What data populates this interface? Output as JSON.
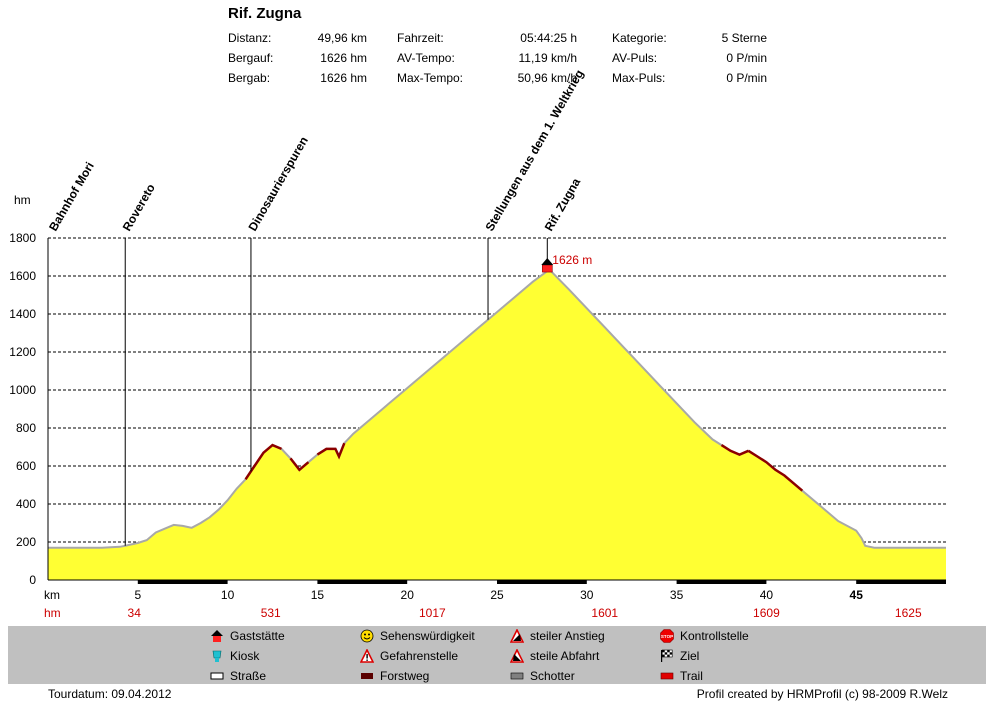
{
  "header": {
    "title": "Rif. Zugna",
    "stats": [
      [
        {
          "label": "Distanz:",
          "value": "49,96 km"
        },
        {
          "label": "Fahrzeit:",
          "value": "05:44:25 h"
        },
        {
          "label": "Kategorie:",
          "value": "5 Sterne"
        }
      ],
      [
        {
          "label": "Bergauf:",
          "value": "1626 hm"
        },
        {
          "label": "AV-Tempo:",
          "value": "11,19 km/h"
        },
        {
          "label": "AV-Puls:",
          "value": "0 P/min"
        }
      ],
      [
        {
          "label": "Bergab:",
          "value": "1626 hm"
        },
        {
          "label": "Max-Tempo:",
          "value": "50,96 km/h"
        },
        {
          "label": "Max-Puls:",
          "value": "0 P/min"
        }
      ]
    ]
  },
  "chart_data": {
    "type": "area",
    "ylabel": "hm",
    "xlabel": "km",
    "ylim": [
      0,
      1800
    ],
    "xlim": [
      0,
      50
    ],
    "yticks": [
      0,
      200,
      400,
      600,
      800,
      1000,
      1200,
      1400,
      1600,
      1800
    ],
    "xticks": [
      5,
      10,
      15,
      20,
      25,
      30,
      35,
      40,
      45
    ],
    "xtick_labels": [
      "5",
      "10",
      "15",
      "20",
      "25",
      "30",
      "35",
      "40",
      "45"
    ],
    "grid": "horizontal dashed",
    "fill_color": "#ffff33",
    "outline_color": "#a8a8a8",
    "trail_color": "#8b0000",
    "elevation": {
      "x": [
        0,
        1,
        2,
        3,
        4,
        4.3,
        5,
        5.5,
        6,
        6.5,
        7,
        7.5,
        8,
        8.5,
        9,
        9.5,
        10,
        10.5,
        11,
        11.5,
        12,
        12.5,
        13,
        13.5,
        14,
        14.5,
        15,
        15.5,
        16,
        16.2,
        16.5,
        17,
        18,
        19,
        20,
        21,
        22,
        23,
        24,
        25,
        26,
        27,
        27.8,
        28,
        29,
        30,
        31,
        32,
        33,
        34,
        35,
        36,
        37,
        38,
        38.5,
        39,
        39.5,
        40,
        40.5,
        41,
        41.5,
        42,
        43,
        44,
        45,
        45.3,
        45.5,
        46,
        47,
        48,
        49,
        50
      ],
      "y": [
        170,
        170,
        170,
        170,
        175,
        180,
        195,
        210,
        250,
        270,
        290,
        285,
        275,
        300,
        330,
        370,
        420,
        480,
        530,
        600,
        670,
        710,
        690,
        640,
        580,
        620,
        660,
        690,
        690,
        650,
        720,
        770,
        850,
        930,
        1010,
        1090,
        1170,
        1250,
        1330,
        1410,
        1490,
        1570,
        1626,
        1626,
        1530,
        1430,
        1330,
        1230,
        1130,
        1030,
        930,
        830,
        740,
        680,
        660,
        680,
        650,
        620,
        580,
        550,
        510,
        470,
        390,
        310,
        260,
        220,
        180,
        170,
        170,
        170,
        170,
        170
      ]
    },
    "trail_segments": [
      [
        11,
        13
      ],
      [
        13.5,
        14.5
      ],
      [
        15,
        16.5
      ],
      [
        37.5,
        39
      ],
      [
        39,
        42
      ]
    ],
    "bottom_bar": {
      "black_segments": [
        [
          5,
          10
        ],
        [
          15,
          20
        ],
        [
          25,
          30
        ],
        [
          35,
          40
        ],
        [
          45,
          50
        ]
      ]
    },
    "waypoints": [
      {
        "name": "Bahnhof Mori",
        "km": 0.2
      },
      {
        "name": "Rovereto",
        "km": 4.3
      },
      {
        "name": "Dinosaurierspuren",
        "km": 11.3
      },
      {
        "name": "Stellungen aus dem 1. Weltkrieg",
        "km": 24.5
      },
      {
        "name": "Rif. Zugna",
        "km": 27.8
      }
    ],
    "summit_marker": {
      "km": 27.8,
      "elevation": 1626,
      "label": "1626 m",
      "icon": "gaststaette-icon"
    },
    "hm_row": {
      "label": "hm",
      "entries": [
        {
          "km": 4.8,
          "value": "34"
        },
        {
          "km": 12.4,
          "value": "531"
        },
        {
          "km": 21.4,
          "value": "1017"
        },
        {
          "km": 31.0,
          "value": "1601"
        },
        {
          "km": 40.0,
          "value": "1609"
        },
        {
          "km": 47.9,
          "value": "1625"
        }
      ]
    }
  },
  "legend": {
    "columns": [
      [
        {
          "label": "Gaststätte",
          "icon": "gaststaette-icon"
        },
        {
          "label": "Kiosk",
          "icon": "kiosk-icon"
        },
        {
          "label": "Straße",
          "icon": "strasse-icon"
        }
      ],
      [
        {
          "label": "Sehenswürdigkeit",
          "icon": "smiley-icon"
        },
        {
          "label": "Gefahrenstelle",
          "icon": "warning-icon"
        },
        {
          "label": "Forstweg",
          "icon": "forstweg-icon"
        }
      ],
      [
        {
          "label": "steiler Anstieg",
          "icon": "steep-climb-icon"
        },
        {
          "label": "steile Abfahrt",
          "icon": "steep-descent-icon"
        },
        {
          "label": "Schotter",
          "icon": "schotter-icon"
        }
      ],
      [
        {
          "label": "Kontrollstelle",
          "icon": "stop-icon"
        },
        {
          "label": "Ziel",
          "icon": "finish-flag-icon"
        },
        {
          "label": "Trail",
          "icon": "trail-icon"
        }
      ]
    ]
  },
  "footer": {
    "date": "Tourdatum: 09.04.2012",
    "credit": "Profil created by HRMProfil (c) 98-2009 R.Welz"
  }
}
